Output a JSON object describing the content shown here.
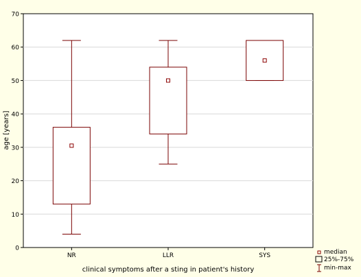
{
  "chart_data": {
    "type": "boxplot",
    "xlabel": "clinical symptoms after a sting in patient's history",
    "ylabel": "age [years]",
    "ylim": [
      0,
      70
    ],
    "yticks": [
      0,
      10,
      20,
      30,
      40,
      50,
      60,
      70
    ],
    "grid": true,
    "legend_position": "bottom-right",
    "categories": [
      "NR",
      "LLR",
      "SYS"
    ],
    "boxes": [
      {
        "category": "NR",
        "min": 4,
        "q1": 13,
        "median": 30.5,
        "q3": 36,
        "max": 62
      },
      {
        "category": "LLR",
        "min": 25,
        "q1": 34,
        "median": 50,
        "q3": 54,
        "max": 62
      },
      {
        "category": "SYS",
        "min": 50,
        "q1": 50,
        "median": 56,
        "q3": 62,
        "max": 62
      }
    ],
    "legend": [
      {
        "symbol": "median",
        "label": "median"
      },
      {
        "symbol": "box",
        "label": "25%-75%"
      },
      {
        "symbol": "whisker",
        "label": "min-max"
      }
    ],
    "colors": {
      "box": "#7a0000",
      "median": "#8b0000",
      "background": "#ffffe8",
      "plot_bg": "#ffffff",
      "grid": "#d8d8d8"
    }
  }
}
